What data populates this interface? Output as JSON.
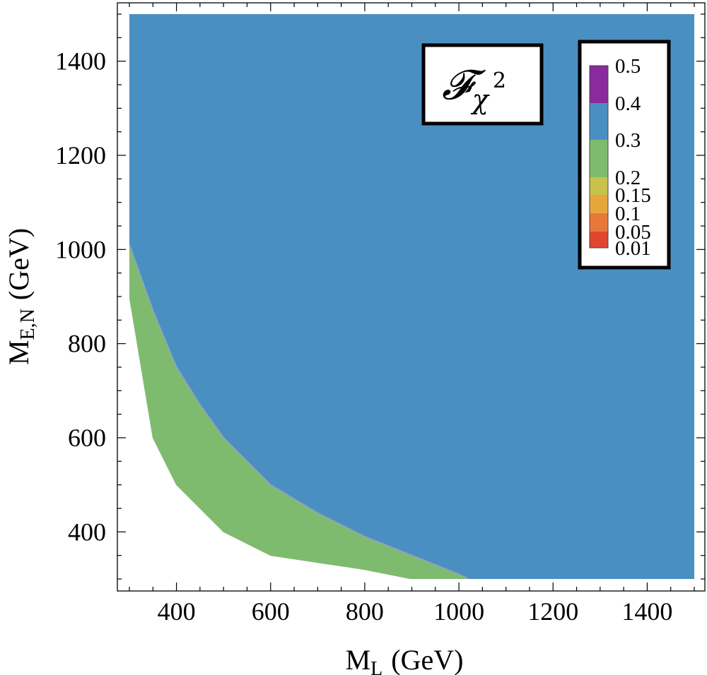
{
  "chart_data": {
    "type": "contour",
    "xlabel": {
      "main": "M",
      "sub": "L",
      "unit": "(GeV)"
    },
    "ylabel": {
      "main": "M",
      "sub": "E,N",
      "unit": "(GeV)"
    },
    "xlim": [
      300,
      1500
    ],
    "ylim": [
      300,
      1500
    ],
    "x_ticks": [
      400,
      600,
      800,
      1000,
      1200,
      1400
    ],
    "y_ticks": [
      400,
      600,
      800,
      1000,
      1200,
      1400
    ],
    "minor_tick_step": 50,
    "grid": false,
    "annotation": {
      "symbol": "𝓕",
      "subscript": "χ",
      "superscript": "2"
    },
    "legend": {
      "placement": "top-right",
      "levels": [
        {
          "label": "0.01",
          "value": 0.01,
          "color": "#e0452f"
        },
        {
          "label": "0.05",
          "value": 0.05,
          "color": "#e8783a"
        },
        {
          "label": "0.1",
          "value": 0.1,
          "color": "#e5a73c"
        },
        {
          "label": "0.15",
          "value": 0.15,
          "color": "#c8c24a"
        },
        {
          "label": "0.2",
          "value": 0.2,
          "color": "#7fbb6e"
        },
        {
          "label": "0.3",
          "value": 0.3,
          "color": "#4a8fc2"
        },
        {
          "label": "0.4",
          "value": 0.4,
          "color": "#8a2a9c"
        },
        {
          "label": "0.5",
          "value": 0.5
        }
      ]
    },
    "regions": [
      {
        "name": "0.3-0.4",
        "color": "#4a8fc2",
        "points": [
          [
            300,
            1010
          ],
          [
            350,
            870
          ],
          [
            400,
            750
          ],
          [
            450,
            670
          ],
          [
            500,
            600
          ],
          [
            600,
            500
          ],
          [
            700,
            440
          ],
          [
            800,
            390
          ],
          [
            900,
            350
          ],
          [
            1000,
            310
          ],
          [
            1020,
            300
          ],
          [
            1500,
            300
          ],
          [
            1500,
            1500
          ],
          [
            300,
            1500
          ]
        ]
      },
      {
        "name": "0.2-0.3",
        "color": "#7fbb6e",
        "points": [
          [
            300,
            1010
          ],
          [
            350,
            870
          ],
          [
            400,
            750
          ],
          [
            450,
            670
          ],
          [
            500,
            600
          ],
          [
            600,
            500
          ],
          [
            700,
            440
          ],
          [
            800,
            390
          ],
          [
            900,
            350
          ],
          [
            1000,
            310
          ],
          [
            1020,
            300
          ],
          [
            900,
            300
          ],
          [
            800,
            320
          ],
          [
            700,
            335
          ],
          [
            600,
            350
          ],
          [
            500,
            400
          ],
          [
            400,
            500
          ],
          [
            350,
            600
          ],
          [
            300,
            900
          ]
        ]
      }
    ]
  }
}
